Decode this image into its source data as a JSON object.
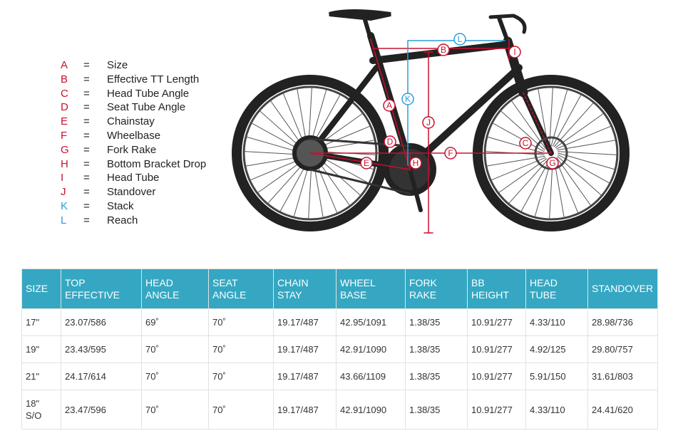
{
  "legend": [
    {
      "letter": "A",
      "sign": "=",
      "label": "Size",
      "color": "#c8102e"
    },
    {
      "letter": "B",
      "sign": "=",
      "label": "Effective TT Length",
      "color": "#c8102e"
    },
    {
      "letter": "C",
      "sign": "=",
      "label": "Head Tube Angle",
      "color": "#c8102e"
    },
    {
      "letter": "D",
      "sign": "=",
      "label": "Seat Tube Angle",
      "color": "#c8102e"
    },
    {
      "letter": "E",
      "sign": "=",
      "label": "Chainstay",
      "color": "#c8102e"
    },
    {
      "letter": "F",
      "sign": "=",
      "label": "Wheelbase",
      "color": "#c8102e"
    },
    {
      "letter": "G",
      "sign": "=",
      "label": "Fork Rake",
      "color": "#c8102e"
    },
    {
      "letter": "H",
      "sign": "=",
      "label": "Bottom Bracket Drop",
      "color": "#c8102e"
    },
    {
      "letter": "I",
      "sign": "=",
      "label": "Head Tube",
      "color": "#c8102e"
    },
    {
      "letter": "J",
      "sign": "=",
      "label": "Standover",
      "color": "#c8102e"
    },
    {
      "letter": "K",
      "sign": "=",
      "label": "Stack",
      "color": "#2a9fd6"
    },
    {
      "letter": "L",
      "sign": "=",
      "label": "Reach",
      "color": "#2a9fd6"
    }
  ],
  "diagram": {
    "labels": [
      "B",
      "L",
      "I",
      "A",
      "K",
      "J",
      "D",
      "C",
      "F",
      "E",
      "H",
      "G"
    ]
  },
  "table": {
    "header": [
      "SIZE",
      "TOP\nEFFECTIVE",
      "HEAD\nANGLE",
      "SEAT\nANGLE",
      "CHAIN\nSTAY",
      "WHEEL\nBASE",
      "FORK\nRAKE",
      "BB\nHEIGHT",
      "HEAD\nTUBE",
      "STANDOVER"
    ],
    "rows": [
      [
        "17\"",
        "23.07/586",
        "69˚",
        "70˚",
        "19.17/487",
        "42.95/1091",
        "1.38/35",
        "10.91/277",
        "4.33/110",
        "28.98/736"
      ],
      [
        "19\"",
        "23.43/595",
        "70˚",
        "70˚",
        "19.17/487",
        "42.91/1090",
        "1.38/35",
        "10.91/277",
        "4.92/125",
        "29.80/757"
      ],
      [
        "21\"",
        "24.17/614",
        "70˚",
        "70˚",
        "19.17/487",
        "43.66/1109",
        "1.38/35",
        "10.91/277",
        "5.91/150",
        "31.61/803"
      ],
      [
        "18\"\nS/O",
        "23.47/596",
        "70˚",
        "70˚",
        "19.17/487",
        "42.91/1090",
        "1.38/35",
        "10.91/277",
        "4.33/110",
        "24.41/620"
      ]
    ]
  }
}
